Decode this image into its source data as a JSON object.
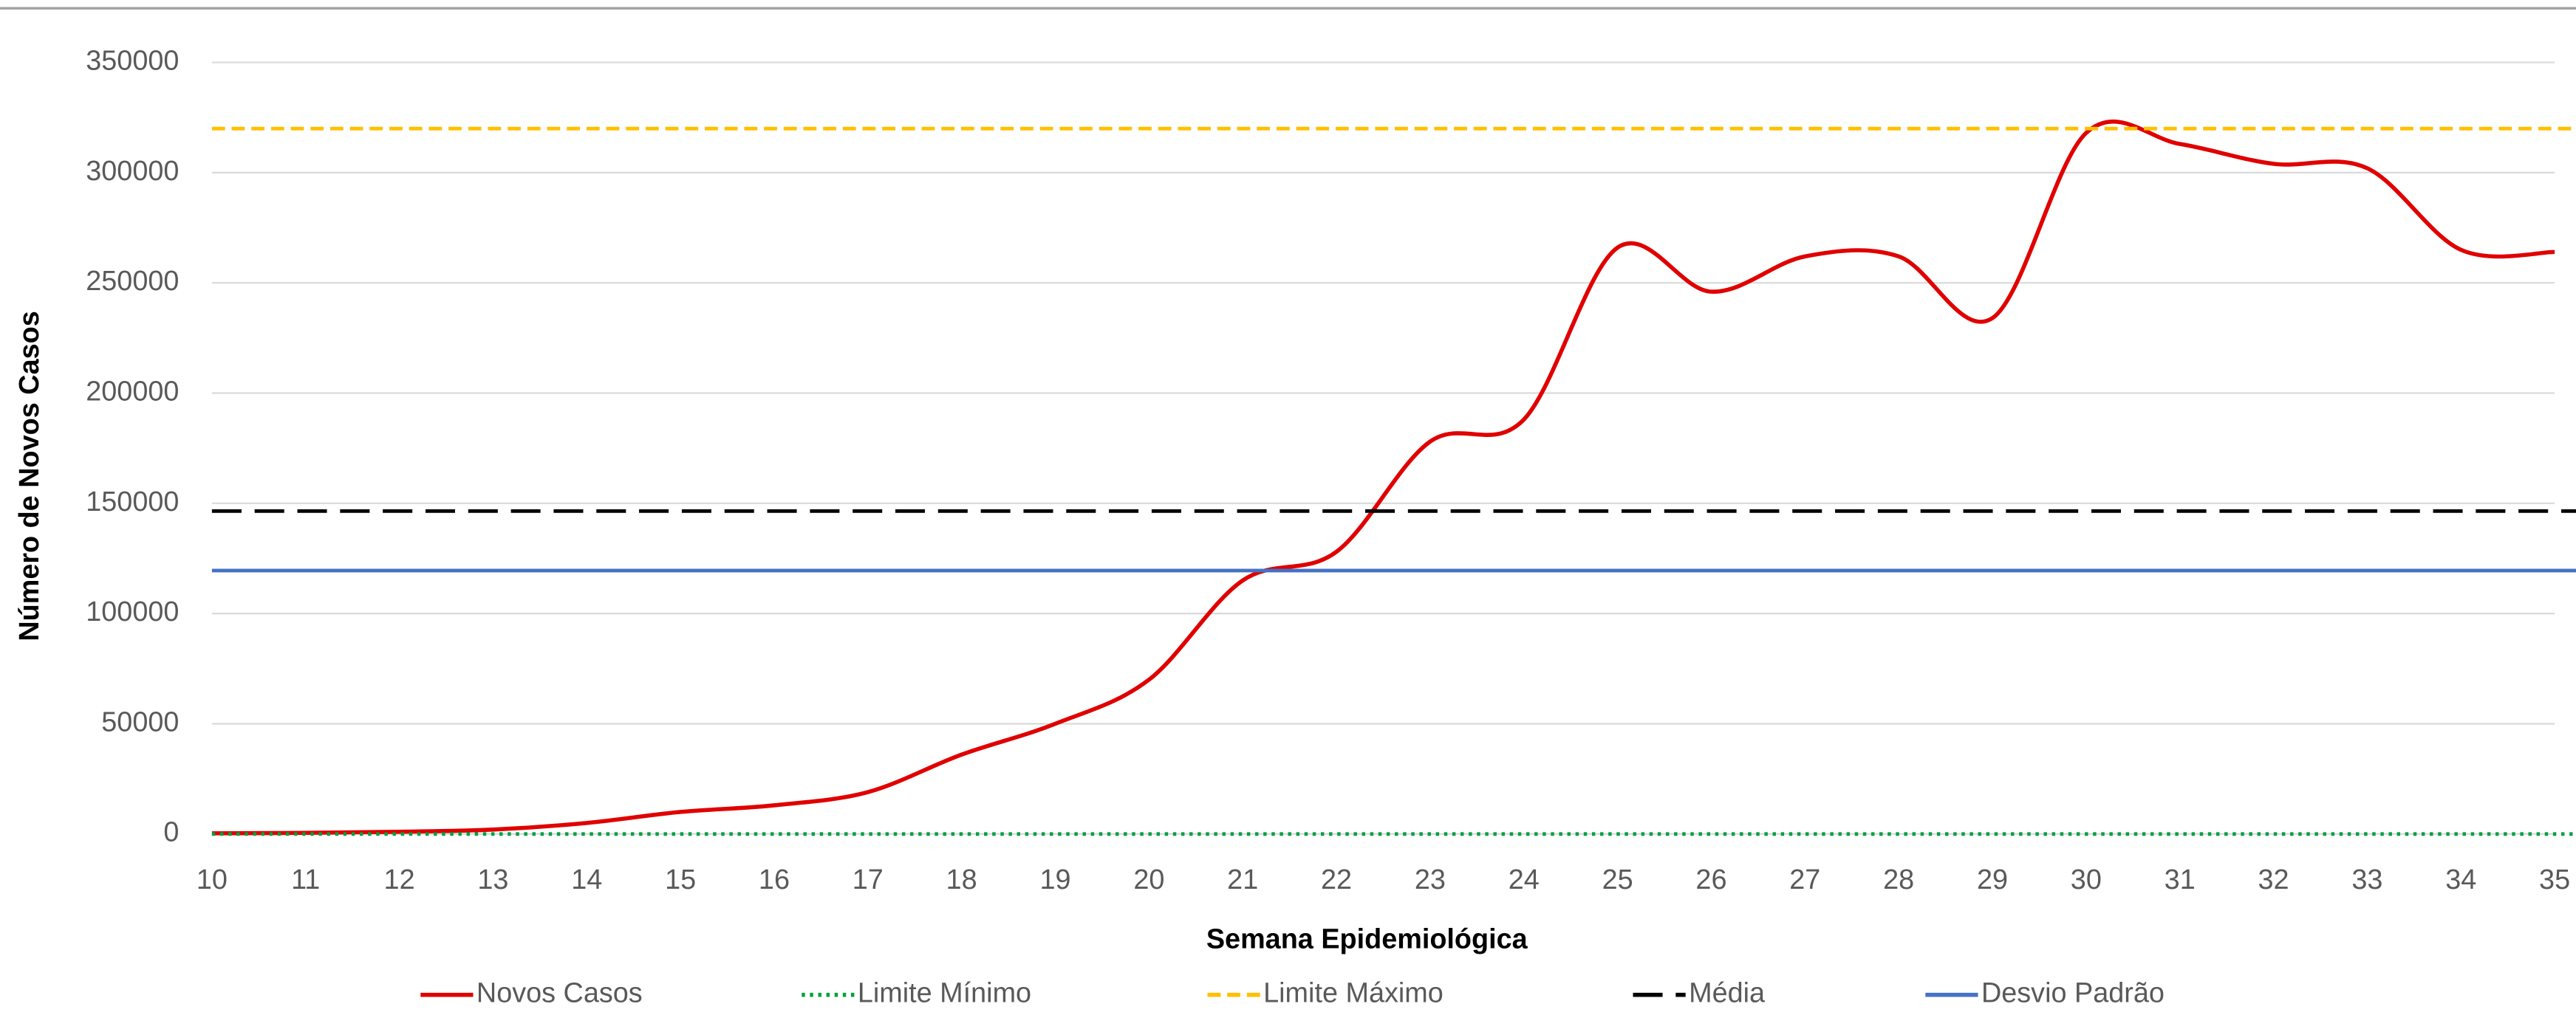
{
  "chart_data": {
    "type": "line",
    "x_label": "Semana Epidemiológica",
    "y_label": "Número de Novos Casos",
    "x": [
      10,
      11,
      12,
      13,
      14,
      15,
      16,
      17,
      18,
      19,
      20,
      21,
      22,
      23,
      24,
      25,
      26,
      27,
      28,
      29,
      30,
      31,
      32,
      33,
      34,
      35
    ],
    "xlim": [
      10,
      35
    ],
    "xticks": [
      10,
      11,
      12,
      13,
      14,
      15,
      16,
      17,
      18,
      19,
      20,
      21,
      22,
      23,
      24,
      25,
      26,
      27,
      28,
      29,
      30,
      31,
      32,
      33,
      34,
      35
    ],
    "ylim": [
      0,
      350000
    ],
    "yticks": [
      0,
      50000,
      100000,
      150000,
      200000,
      250000,
      300000,
      350000
    ],
    "grid": true,
    "legend": "bottom",
    "series": [
      {
        "name": "Novos Casos",
        "color": "#e00000",
        "style": "solid",
        "smooth": true,
        "values": [
          300,
          500,
          1000,
          2000,
          5000,
          10000,
          13000,
          19000,
          36000,
          50000,
          70000,
          115000,
          128000,
          178000,
          188000,
          266000,
          246000,
          262000,
          262000,
          234000,
          318000,
          313000,
          304000,
          302000,
          265000,
          264000
        ]
      },
      {
        "name": "Limite Mínimo",
        "color": "#00a040",
        "style": "dotted",
        "value": 0
      },
      {
        "name": "Limite Máximo",
        "color": "#ffc000",
        "style": "dashed",
        "value": 320000
      },
      {
        "name": "Média",
        "color": "#000000",
        "style": "longdash",
        "value": 146500
      },
      {
        "name": "Desvio Padrão",
        "color": "#4472c4",
        "style": "solid",
        "value": 119500
      }
    ]
  }
}
